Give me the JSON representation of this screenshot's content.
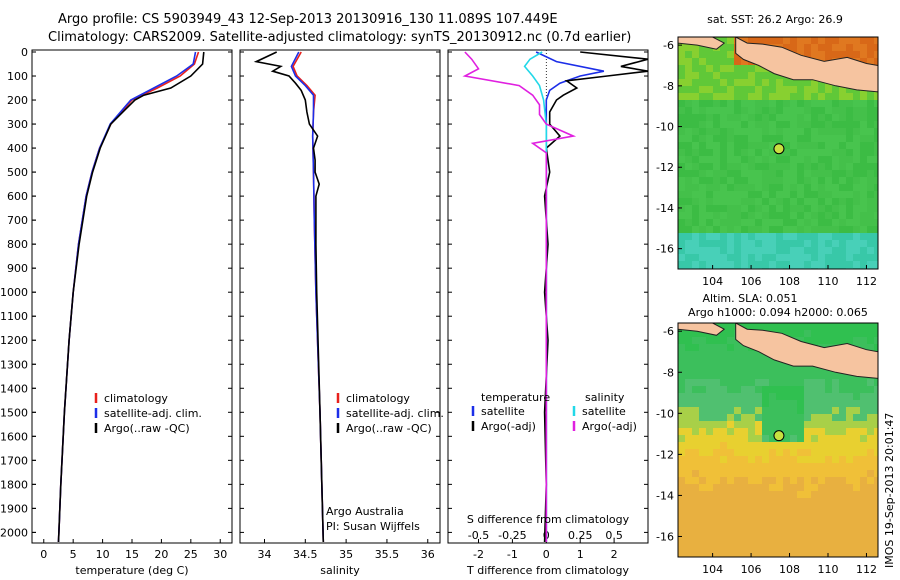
{
  "header": {
    "line1": "Argo profile: CS 5903949_43 12-Sep-2013 20130916_130 11.089S 107.449E",
    "line2": "Climatology: CARS2009. Satellite-adjusted climatology: synTS_20130912.nc (0.7d earlier)"
  },
  "colors": {
    "climatology": "#e8201c",
    "satellite": "#1c2ee8",
    "argo": "#000000",
    "cyan": "#22d8e8",
    "magenta": "#e020e0"
  },
  "depth_ticks": [
    "0",
    "100",
    "200",
    "300",
    "400",
    "500",
    "600",
    "700",
    "800",
    "900",
    "1000",
    "1100",
    "1200",
    "1300",
    "1400",
    "1500",
    "1600",
    "1700",
    "1800",
    "1900",
    "2000"
  ],
  "chart_data": [
    {
      "type": "line",
      "xlabel": "temperature (deg C)",
      "xticks": [
        "0",
        "5",
        "10",
        "15",
        "20",
        "25",
        "30"
      ],
      "xlim": [
        -2,
        32
      ],
      "ylim": [
        2070,
        0
      ],
      "legend": [
        "climatology",
        "satellite-adj. clim.",
        "Argo(..raw -QC)"
      ],
      "series": [
        {
          "name": "climatology",
          "depth": [
            0,
            50,
            100,
            150,
            200,
            300,
            400,
            500,
            600,
            800,
            1000,
            1200,
            1500,
            1800,
            2040
          ],
          "values": [
            26.3,
            25.6,
            23.2,
            19.3,
            15.0,
            11.4,
            9.5,
            8.2,
            7.2,
            5.9,
            5.0,
            4.3,
            3.5,
            2.9,
            2.5
          ]
        },
        {
          "name": "satellite-adj. clim.",
          "depth": [
            0,
            50,
            100,
            150,
            200,
            300,
            400,
            500,
            600,
            800,
            1000,
            1200,
            1500,
            1800,
            2040
          ],
          "values": [
            25.8,
            25.4,
            22.6,
            18.7,
            14.8,
            11.3,
            9.5,
            8.2,
            7.2,
            5.9,
            5.0,
            4.3,
            3.5,
            2.9,
            2.5
          ]
        },
        {
          "name": "Argo(..raw -QC)",
          "depth": [
            0,
            50,
            100,
            150,
            180,
            200,
            300,
            400,
            500,
            600,
            800,
            1000,
            1200,
            1500,
            1800,
            2040
          ],
          "values": [
            27.2,
            27.0,
            25.0,
            21.6,
            17.0,
            15.5,
            11.4,
            9.6,
            8.3,
            7.3,
            6.0,
            5.0,
            4.3,
            3.5,
            2.9,
            2.5
          ]
        }
      ]
    },
    {
      "type": "line",
      "xlabel": "salinity",
      "xticks": [
        "34",
        "34.5",
        "35",
        "35.5",
        "36"
      ],
      "xlim": [
        33.7,
        36.15
      ],
      "ylim": [
        2070,
        0
      ],
      "legend": [
        "climatology",
        "satellite-adj. clim.",
        "Argo(..raw -QC)"
      ],
      "series": [
        {
          "name": "climatology",
          "depth": [
            0,
            60,
            100,
            140,
            180,
            250,
            350,
            500,
            700,
            1000,
            1500,
            2040
          ],
          "values": [
            34.45,
            34.35,
            34.4,
            34.52,
            34.62,
            34.6,
            34.59,
            34.6,
            34.61,
            34.63,
            34.68,
            34.72
          ]
        },
        {
          "name": "satellite-adj. clim.",
          "depth": [
            0,
            60,
            100,
            140,
            180,
            250,
            350,
            500,
            700,
            1000,
            1500,
            2040
          ],
          "values": [
            34.42,
            34.33,
            34.38,
            34.5,
            34.6,
            34.6,
            34.59,
            34.6,
            34.61,
            34.63,
            34.68,
            34.72
          ]
        },
        {
          "name": "Argo(..raw -QC)",
          "depth": [
            0,
            40,
            60,
            80,
            100,
            130,
            160,
            200,
            250,
            300,
            350,
            400,
            450,
            500,
            550,
            600,
            700,
            800,
            1000,
            1500,
            2040
          ],
          "values": [
            34.15,
            33.9,
            34.2,
            34.1,
            34.3,
            34.38,
            34.45,
            34.5,
            34.52,
            34.55,
            34.65,
            34.6,
            34.62,
            34.62,
            34.67,
            34.63,
            34.63,
            34.63,
            34.64,
            34.68,
            34.72
          ]
        }
      ],
      "annotations": [
        "Argo Australia",
        "PI: Susan Wijffels"
      ]
    },
    {
      "type": "line",
      "xlabel": "T difference from climatology",
      "xlabel_top": "S difference from climatology",
      "xticks": [
        "-2",
        "-1",
        "0",
        "1",
        "2"
      ],
      "xticks_top": [
        "-0.5",
        "-0.25",
        "0",
        "0.25",
        "0.5"
      ],
      "xlim": [
        -2.9,
        3.0
      ],
      "ylim": [
        2070,
        0
      ],
      "legend_left_title": "temperature",
      "legend_left": [
        "satellite",
        "Argo(-adj)"
      ],
      "legend_right_title": "salinity",
      "legend_right": [
        "satellite",
        "Argo(-adj)"
      ],
      "series": [
        {
          "name": "temperature satellite",
          "depth": [
            0,
            40,
            80,
            100,
            130,
            160,
            200,
            250,
            300,
            400,
            600,
            1000,
            1500,
            2040
          ],
          "values": [
            -0.3,
            0.3,
            1.7,
            1.0,
            0.4,
            0.1,
            0.0,
            0.0,
            0.0,
            0.0,
            0.0,
            0.0,
            0.0,
            0.0
          ]
        },
        {
          "name": "temperature Argo(-adj)",
          "depth": [
            0,
            30,
            60,
            80,
            100,
            120,
            150,
            180,
            200,
            250,
            300,
            350,
            400,
            500,
            600,
            800,
            1000,
            1200,
            1500,
            1800,
            2040
          ],
          "values": [
            1.0,
            3.0,
            2.2,
            3.5,
            1.8,
            0.6,
            0.9,
            0.5,
            0.3,
            0.1,
            0.1,
            0.4,
            0.0,
            0.1,
            -0.05,
            0.05,
            -0.05,
            0.05,
            -0.05,
            0.0,
            -0.05
          ]
        },
        {
          "name": "salinity satellite",
          "depth": [
            0,
            30,
            60,
            100,
            140,
            200,
            300,
            400,
            600,
            1000,
            1500,
            2040
          ],
          "values": [
            -0.03,
            -0.12,
            -0.16,
            -0.1,
            -0.05,
            -0.02,
            0.0,
            0.0,
            0.0,
            0.0,
            0.0,
            0.0
          ]
        },
        {
          "name": "salinity Argo(-adj)",
          "depth": [
            0,
            30,
            70,
            100,
            140,
            180,
            220,
            260,
            300,
            350,
            380,
            420,
            500,
            600,
            700,
            1000,
            1500,
            2040
          ],
          "values": [
            -0.6,
            -0.55,
            -0.5,
            -0.6,
            -0.2,
            -0.1,
            -0.05,
            -0.05,
            0.0,
            0.2,
            -0.1,
            0.0,
            0.0,
            0.0,
            0.0,
            0.0,
            0.0,
            0.0
          ]
        }
      ]
    },
    {
      "type": "heatmap",
      "title": "sat. SST: 26.2 Argo: 26.9",
      "xticks": [
        "104",
        "106",
        "108",
        "110",
        "112"
      ],
      "yticks": [
        "-6",
        "-8",
        "-10",
        "-12",
        "-14",
        "-16"
      ],
      "xlim": [
        102.2,
        112.6
      ],
      "ylim": [
        -17.0,
        -5.6
      ],
      "marker": {
        "lon": 107.449,
        "lat": -11.089
      }
    },
    {
      "type": "heatmap",
      "title": "Altim. SLA: 0.051",
      "subtitle": "Argo h1000: 0.094 h2000: 0.065",
      "xticks": [
        "104",
        "106",
        "108",
        "110",
        "112"
      ],
      "yticks": [
        "-6",
        "-8",
        "-10",
        "-12",
        "-14",
        "-16"
      ],
      "xlim": [
        102.2,
        112.6
      ],
      "ylim": [
        -17.0,
        -5.6
      ],
      "marker": {
        "lon": 107.449,
        "lat": -11.089
      }
    }
  ],
  "footer": {
    "stamp": "IMOS 19-Sep-2013 20:01:47"
  }
}
